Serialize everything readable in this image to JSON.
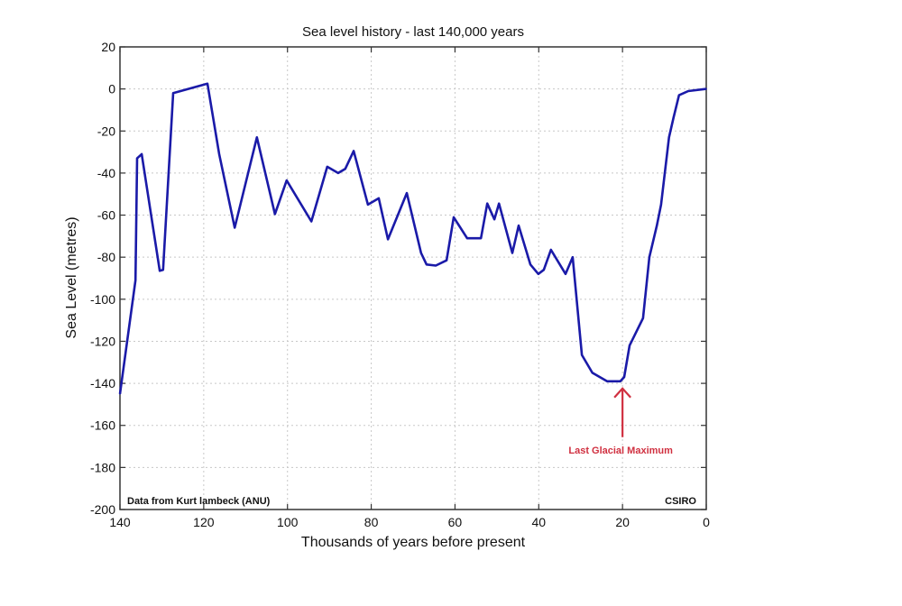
{
  "chart_data": {
    "type": "line",
    "title": "Sea level history - last 140,000 years",
    "xlabel": "Thousands of years before present",
    "ylabel": "Sea Level (metres)",
    "xlim": [
      140,
      0
    ],
    "ylim": [
      -200,
      20
    ],
    "x_reversed": true,
    "grid": true,
    "x_ticks": [
      140,
      120,
      100,
      80,
      60,
      40,
      20,
      0
    ],
    "x_tick_labels": [
      "140",
      "120",
      "100",
      "80",
      "60",
      "40",
      "20",
      "0"
    ],
    "y_ticks": [
      20,
      0,
      -20,
      -40,
      -60,
      -80,
      -100,
      -120,
      -140,
      -160,
      -180,
      -200
    ],
    "y_tick_labels": [
      "20",
      "0",
      "-20",
      "-40",
      "-60",
      "-80",
      "-100",
      "-120",
      "-140",
      "-160",
      "-180",
      "-200"
    ],
    "series": [
      {
        "name": "Sea level",
        "color": "#1a1aa8",
        "x": [
          140,
          136.3,
          135.9,
          134.8,
          130.5,
          129.7,
          127.3,
          119.1,
          116.3,
          112.6,
          107.3,
          103,
          100.2,
          94.3,
          90.5,
          87.9,
          86.2,
          84.2,
          80.8,
          78.2,
          76,
          71.5,
          68.1,
          66.8,
          64.6,
          62,
          60.3,
          57.1,
          53.8,
          52.3,
          50.6,
          49.5,
          46.3,
          44.8,
          42,
          40.1,
          38.8,
          37.1,
          33.6,
          31.9,
          29.7,
          27.2,
          23.7,
          20.5,
          19.6,
          18.3,
          15.1,
          13.6,
          11.8,
          10.8,
          8.9,
          7.8,
          6.5,
          4.3,
          0
        ],
        "y": [
          -145,
          -91,
          -33,
          -31,
          -86.5,
          -86,
          -2,
          2.5,
          -31,
          -66,
          -23,
          -59.5,
          -43.5,
          -63,
          -37,
          -40,
          -38,
          -29.5,
          -55,
          -52,
          -71.5,
          -49.5,
          -78,
          -83.5,
          -84,
          -81.5,
          -61,
          -71,
          -71,
          -54.5,
          -62,
          -54.5,
          -78,
          -65,
          -83.5,
          -88,
          -86,
          -76.5,
          -88,
          -80,
          -126.5,
          -135,
          -139,
          -139,
          -137,
          -122,
          -109,
          -80,
          -65,
          -55,
          -23,
          -13.5,
          -3,
          -1,
          0
        ]
      }
    ],
    "annotations": [
      {
        "text": "Last Glacial Maximum",
        "x": 20,
        "y": -139,
        "color": "#d03040",
        "arrow": true
      },
      {
        "text": "Data from Kurt lambeck (ANU)",
        "position": "bottom-left"
      },
      {
        "text": "CSIRO",
        "position": "bottom-right"
      }
    ]
  }
}
